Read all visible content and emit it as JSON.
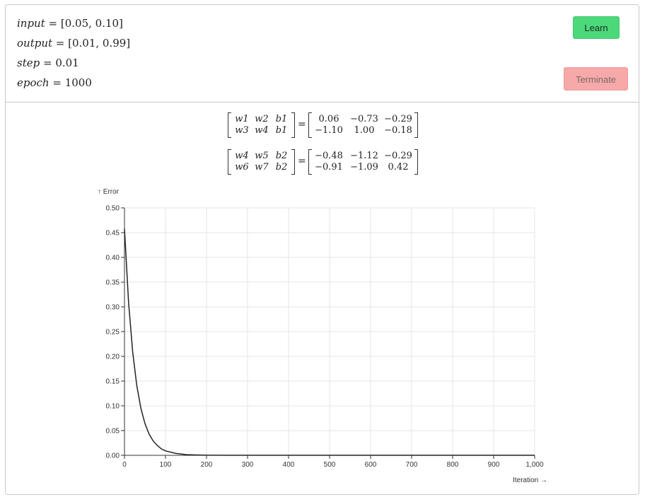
{
  "params": {
    "input": {
      "name": "input",
      "value": "[0.05, 0.10]"
    },
    "output": {
      "name": "output",
      "value": "[0.01, 0.99]"
    },
    "step": {
      "name": "step",
      "value": "0.01"
    },
    "epoch": {
      "name": "epoch",
      "value": "1000"
    }
  },
  "buttons": {
    "learn_label": "Learn",
    "terminate_label": "Terminate"
  },
  "matrices": [
    {
      "vars": [
        [
          "w1",
          "w2",
          "b1"
        ],
        [
          "w3",
          "w4",
          "b1"
        ]
      ],
      "values": [
        [
          "0.06",
          "−0.73",
          "−0.29"
        ],
        [
          "−1.10",
          "1.00",
          "−0.18"
        ]
      ]
    },
    {
      "vars": [
        [
          "w4",
          "w5",
          "b2"
        ],
        [
          "w6",
          "w7",
          "b2"
        ]
      ],
      "values": [
        [
          "−0.48",
          "−1.12",
          "−0.29"
        ],
        [
          "−0.91",
          "−1.09",
          "0.42"
        ]
      ]
    }
  ],
  "chart_data": {
    "type": "line",
    "ylabel": "↑ Error",
    "xlabel": "Iteration →",
    "xlim": [
      0,
      1000
    ],
    "ylim": [
      0,
      0.5
    ],
    "x_ticks": [
      "0",
      "100",
      "200",
      "300",
      "400",
      "500",
      "600",
      "700",
      "800",
      "900",
      "1,000"
    ],
    "y_ticks": [
      "0.00",
      "0.05",
      "0.10",
      "0.15",
      "0.20",
      "0.25",
      "0.30",
      "0.35",
      "0.40",
      "0.45",
      "0.50"
    ],
    "grid": true,
    "series": [
      {
        "x": [
          0,
          10,
          20,
          30,
          40,
          50,
          60,
          70,
          80,
          90,
          100,
          125,
          150,
          175,
          200,
          250,
          300,
          400,
          500,
          600,
          700,
          800,
          900,
          1000
        ],
        "y": [
          0.458,
          0.309,
          0.209,
          0.141,
          0.095,
          0.064,
          0.043,
          0.029,
          0.02,
          0.013,
          0.009,
          0.004,
          0.0015,
          0.0008,
          0.0004,
          0.0002,
          0.0001,
          0.0001,
          0.0001,
          0.0001,
          0.0001,
          0.0001,
          0.0001,
          0.0001
        ]
      }
    ],
    "colors": {
      "line": "#222222",
      "grid": "#e6e6e6"
    }
  }
}
